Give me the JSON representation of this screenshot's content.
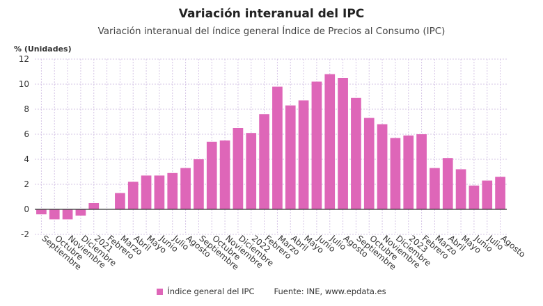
{
  "header": {
    "title": "Variación interanual del IPC",
    "subtitle": "Variación interanual del índice general Índice de Precios al Consumo (IPC)"
  },
  "legend": {
    "series_label": "Índice general del IPC",
    "source": "Fuente: INE, www.epdata.es"
  },
  "colors": {
    "bar": "#de66b8",
    "grid": "#d6c6e6",
    "zero_line": "#333333"
  },
  "chart_data": {
    "type": "bar",
    "title": "Variación interanual del IPC",
    "subtitle": "Variación interanual del índice general Índice de Precios al Consumo (IPC)",
    "ylabel": "% (Unidades)",
    "xlabel": "",
    "ylim": [
      -2,
      12
    ],
    "yticks": [
      -2,
      0,
      2,
      4,
      6,
      8,
      10,
      12
    ],
    "grid": true,
    "legend_position": "bottom",
    "categories": [
      "Septiembre",
      "Octubre",
      "Noviembre",
      "Diciembre",
      "2021",
      "Febrero",
      "Marzo",
      "Abril",
      "Mayo",
      "Junio",
      "Julio",
      "Agosto",
      "Septiembre",
      "Octubre",
      "Noviembre",
      "Diciembre",
      "2022",
      "Febrero",
      "Marzo",
      "Abril",
      "Mayo",
      "Junio",
      "Julio",
      "Agosto",
      "Septiembre",
      "Octubre",
      "Noviembre",
      "Diciembre",
      "2023",
      "Febrero",
      "Marzo",
      "Abril",
      "Mayo",
      "Junio",
      "Julio",
      "Agosto"
    ],
    "series": [
      {
        "name": "Índice general del IPC",
        "values": [
          -0.4,
          -0.8,
          -0.8,
          -0.5,
          0.5,
          0.0,
          1.3,
          2.2,
          2.7,
          2.7,
          2.9,
          3.3,
          4.0,
          5.4,
          5.5,
          6.5,
          6.1,
          7.6,
          9.8,
          8.3,
          8.7,
          10.2,
          10.8,
          10.5,
          8.9,
          7.3,
          6.8,
          5.7,
          5.9,
          6.0,
          3.3,
          4.1,
          3.2,
          1.9,
          2.3,
          2.6
        ]
      }
    ]
  }
}
